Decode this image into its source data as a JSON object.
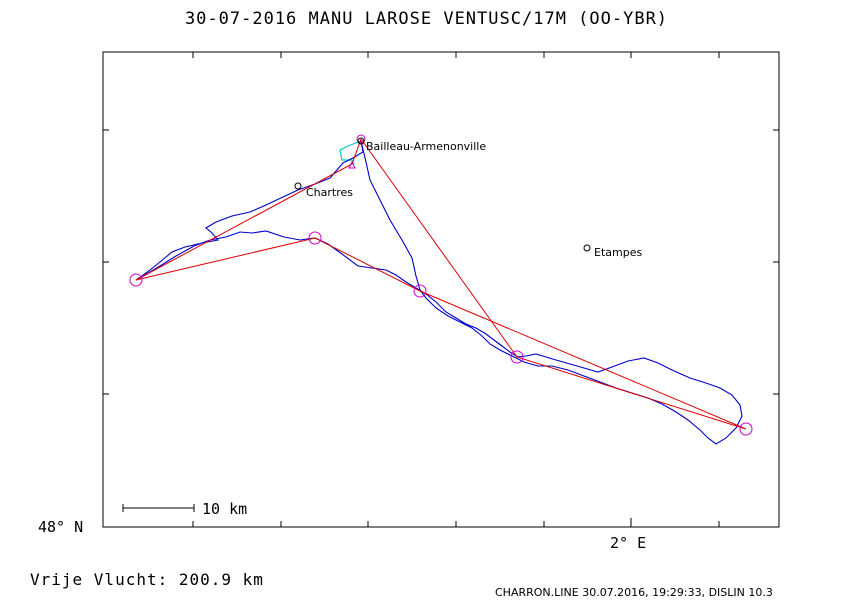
{
  "header": {
    "title": "30-07-2016    MANU LAROSE    VENTUSC/17M (OO-YBR)"
  },
  "map": {
    "places": [
      {
        "name": "Bailleau-Armenonville"
      },
      {
        "name": "Chartres"
      },
      {
        "name": "Etampes"
      }
    ],
    "scale_bar_label": "10 km",
    "lat_label": "48° N",
    "lon_label": "2° E",
    "colors": {
      "track": "#0000cc",
      "task": "#dd0000",
      "turnpoint": "#cc00cc",
      "start": "#00cccc"
    }
  },
  "footer": {
    "free_flight": "Vrije Vlucht:  200.9 km",
    "credits": "CHARRON.LINE 30.07.2016, 19:29:33, DISLIN 10.3"
  }
}
